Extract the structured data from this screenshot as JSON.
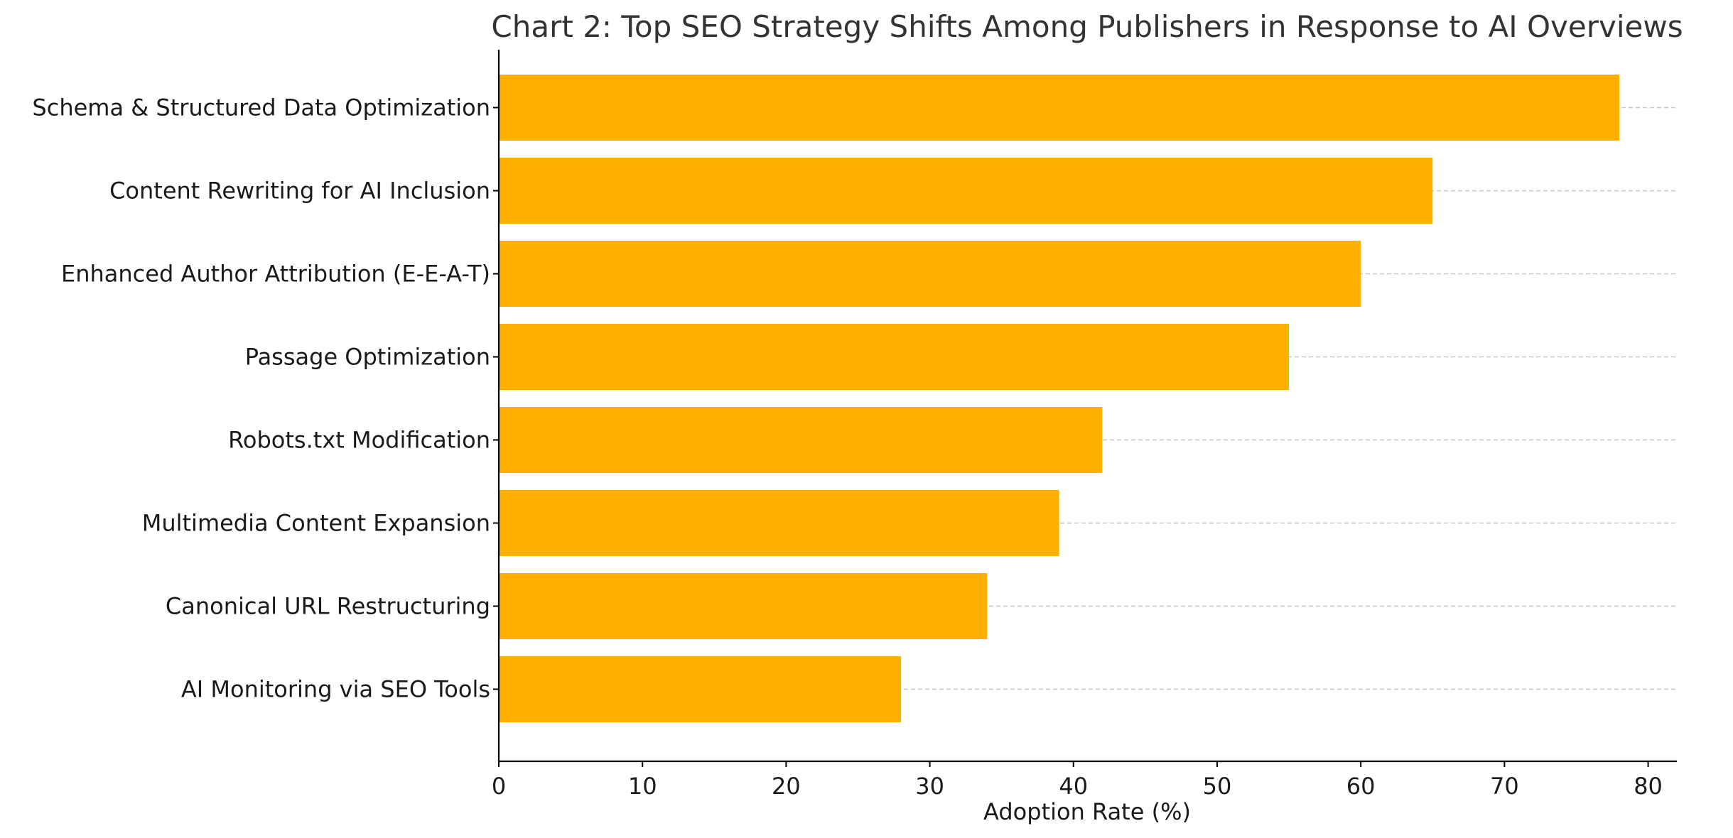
{
  "chart_data": {
    "type": "bar",
    "orientation": "horizontal",
    "title": "Chart 2: Top SEO Strategy Shifts Among Publishers in Response to AI Overviews",
    "xlabel": "Adoption Rate (%)",
    "ylabel": "",
    "categories": [
      "Schema & Structured Data Optimization",
      "Content Rewriting for AI Inclusion",
      "Enhanced Author Attribution (E-E-A-T)",
      "Passage Optimization",
      "Robots.txt Modification",
      "Multimedia Content Expansion",
      "Canonical URL Restructuring",
      "AI Monitoring via SEO Tools"
    ],
    "values": [
      78,
      65,
      60,
      55,
      42,
      39,
      34,
      28
    ],
    "xlim": [
      0,
      82
    ],
    "xticks": [
      0,
      10,
      20,
      30,
      40,
      50,
      60,
      70,
      80
    ],
    "grid": "horizontal dashed",
    "bar_color": "#FFB000"
  }
}
